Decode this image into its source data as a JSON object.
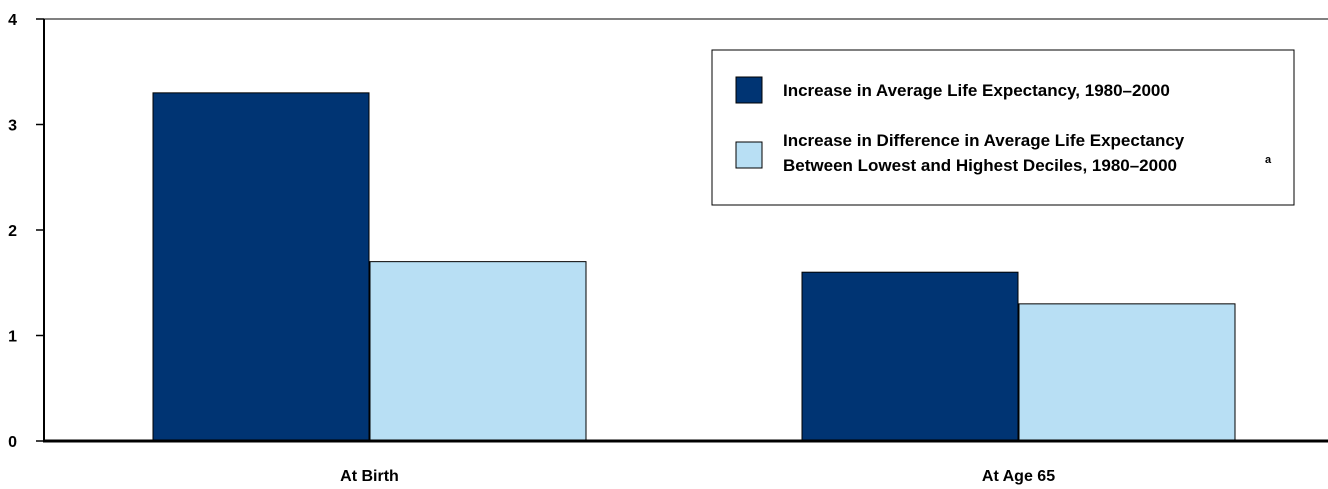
{
  "chart_data": {
    "type": "bar",
    "categories": [
      "At Birth",
      "At Age 65"
    ],
    "series": [
      {
        "name": "Increase in Average Life Expectancy, 1980–2000",
        "legend_lines": [
          "Increase in Average Life Expectancy, 1980–2000"
        ],
        "values": [
          3.3,
          1.6
        ],
        "color": "#003473"
      },
      {
        "name": "Increase in Difference in Average Life Expectancy Between Lowest and Highest Deciles, 1980–2000",
        "legend_lines": [
          "Increase in Difference in Average Life Expectancy",
          "Between Lowest and Highest Deciles, 1980–2000"
        ],
        "legend_superscript": "a",
        "values": [
          1.7,
          1.3
        ],
        "color": "#b8dff4"
      }
    ],
    "y_ticks": [
      "0",
      "1",
      "2",
      "3",
      "4"
    ],
    "ylim": [
      0,
      4
    ],
    "grid": false,
    "legend_position": "top-right",
    "xlabel": "",
    "ylabel": "",
    "title": ""
  }
}
